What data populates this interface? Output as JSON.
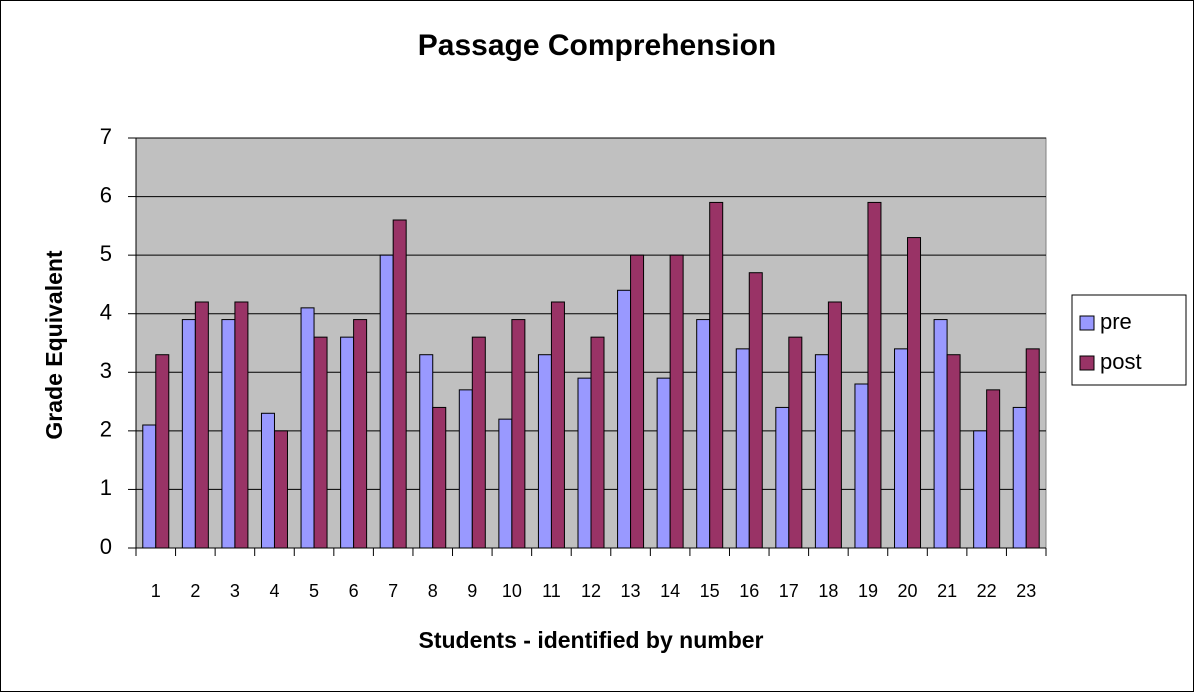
{
  "chart_data": {
    "type": "bar",
    "title": "Passage Comprehension",
    "x_label": "Students - identified by number",
    "y_label": "Grade Equivalent",
    "categories": [
      "1",
      "2",
      "3",
      "4",
      "5",
      "6",
      "7",
      "8",
      "9",
      "10",
      "11",
      "12",
      "13",
      "14",
      "15",
      "16",
      "17",
      "18",
      "19",
      "20",
      "21",
      "22",
      "23"
    ],
    "series": [
      {
        "name": "pre",
        "color": "#9999ff",
        "values": [
          2.1,
          3.9,
          3.9,
          2.3,
          4.1,
          3.6,
          5.0,
          3.3,
          2.7,
          2.2,
          3.3,
          2.9,
          4.4,
          2.9,
          3.9,
          3.4,
          2.4,
          3.3,
          2.8,
          3.4,
          3.9,
          2.0,
          2.4
        ]
      },
      {
        "name": "post",
        "color": "#993366",
        "values": [
          3.3,
          4.2,
          4.2,
          2.0,
          3.6,
          3.9,
          5.6,
          2.4,
          3.6,
          3.9,
          4.2,
          3.6,
          5.0,
          5.0,
          5.9,
          4.7,
          3.6,
          4.2,
          5.9,
          5.3,
          3.3,
          2.7,
          3.4
        ]
      }
    ],
    "ylim": [
      0,
      7
    ],
    "yticks": [
      0,
      1,
      2,
      3,
      4,
      5,
      6,
      7
    ],
    "grid": true,
    "legend": "right"
  }
}
